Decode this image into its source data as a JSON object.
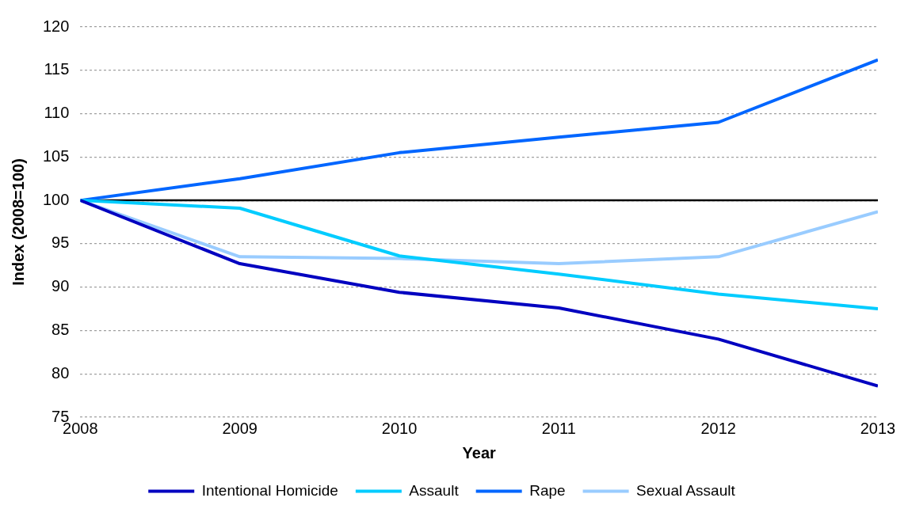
{
  "chart_data": {
    "type": "line",
    "xlabel": "Year",
    "ylabel": "Index (2008=100)",
    "x": [
      2008,
      2009,
      2010,
      2011,
      2012,
      2013
    ],
    "series": [
      {
        "name": "Intentional Homicide",
        "color": "#0000c0",
        "values": [
          100,
          92.7,
          89.4,
          87.6,
          84.0,
          78.6
        ]
      },
      {
        "name": "Assault",
        "color": "#00ccff",
        "values": [
          100,
          99.1,
          93.6,
          91.5,
          89.2,
          87.5
        ]
      },
      {
        "name": "Rape",
        "color": "#0066ff",
        "values": [
          100,
          102.5,
          105.5,
          107.3,
          109.0,
          116.2
        ]
      },
      {
        "name": "Sexual Assault",
        "color": "#99ccff",
        "values": [
          100,
          93.5,
          93.3,
          92.7,
          93.5,
          98.7
        ]
      }
    ],
    "xlim": [
      2008,
      2013
    ],
    "xticks": [
      2008,
      2009,
      2010,
      2011,
      2012,
      2013
    ],
    "ylim": [
      75,
      120
    ],
    "yticks": [
      75,
      80,
      85,
      90,
      95,
      100,
      105,
      110,
      115,
      120
    ],
    "ref_lines": [
      {
        "axis": "y",
        "value": 100,
        "color": "#000000",
        "line_style": "solid"
      }
    ],
    "grid": "y",
    "legend": "bottom",
    "marker": "none",
    "line_style": "solid"
  }
}
